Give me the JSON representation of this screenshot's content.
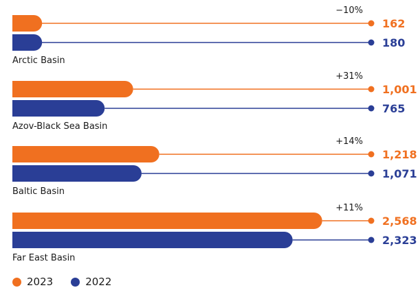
{
  "chart_data": {
    "type": "bar",
    "orientation": "horizontal",
    "categories": [
      "Arctic Basin",
      "Azov-Black Sea Basin",
      "Baltic Basin",
      "Far East Basin"
    ],
    "series": [
      {
        "name": "2023",
        "color": "#f07020",
        "values": [
          162,
          1001,
          1218,
          2568
        ],
        "value_labels": [
          "162",
          "1,001",
          "1,218",
          "2,568"
        ]
      },
      {
        "name": "2022",
        "color": "#2a3e96",
        "values": [
          180,
          765,
          1071,
          2323
        ],
        "value_labels": [
          "180",
          "765",
          "1,071",
          "2,323"
        ]
      }
    ],
    "change_labels": [
      "−10%",
      "+31%",
      "+14%",
      "+11%"
    ],
    "legend_position": "bottom-left",
    "grid": false
  }
}
